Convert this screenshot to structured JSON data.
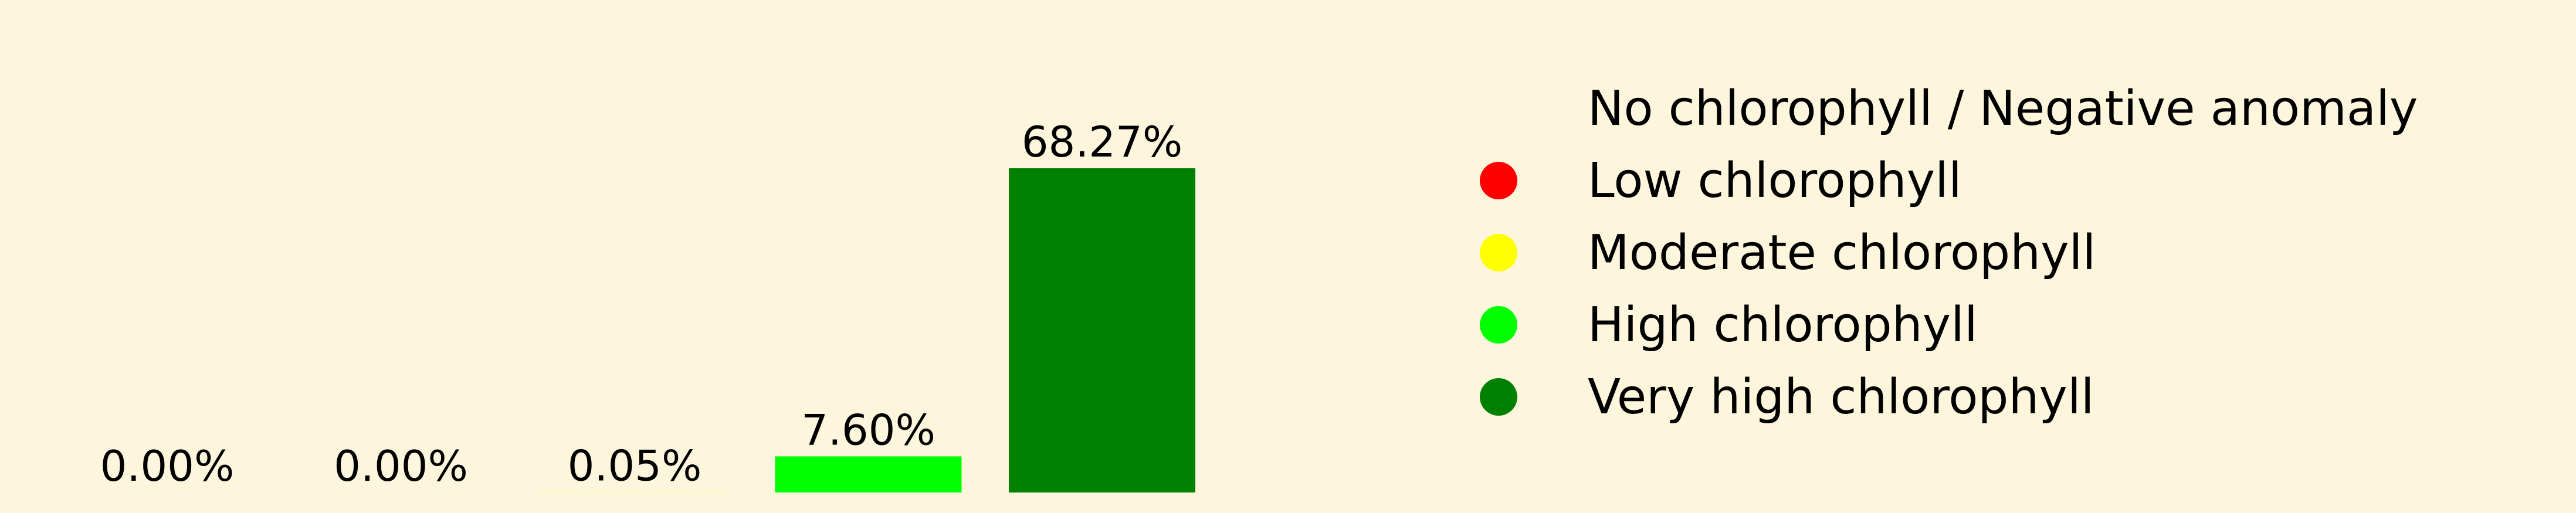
{
  "chart_data": {
    "type": "bar",
    "categories": [
      "No chlorophyll / Negative anomaly",
      "Low chlorophyll",
      "Moderate chlorophyll",
      "High chlorophyll",
      "Very high chlorophyll"
    ],
    "values": [
      0.0,
      0.0,
      0.05,
      7.6,
      68.27
    ],
    "data_labels": [
      "0.00%",
      "0.00%",
      "0.05%",
      "7.60%",
      "68.27%"
    ],
    "colors": [
      "#fdf6dc",
      "#ff0000",
      "#ffff00",
      "#00ff00",
      "#008000"
    ],
    "title": "",
    "xlabel": "",
    "ylabel": "",
    "ylim": [
      0,
      68.27
    ],
    "grid": false,
    "axes_visible": false,
    "legend": {
      "placement": "right",
      "entries": [
        {
          "label": "No chlorophyll / Negative anomaly",
          "color": "#fdf6dc"
        },
        {
          "label": "Low chlorophyll",
          "color": "#ff0000"
        },
        {
          "label": "Moderate chlorophyll",
          "color": "#ffff00"
        },
        {
          "label": "High chlorophyll",
          "color": "#00ff00"
        },
        {
          "label": "Very high chlorophyll",
          "color": "#008000"
        }
      ]
    }
  }
}
